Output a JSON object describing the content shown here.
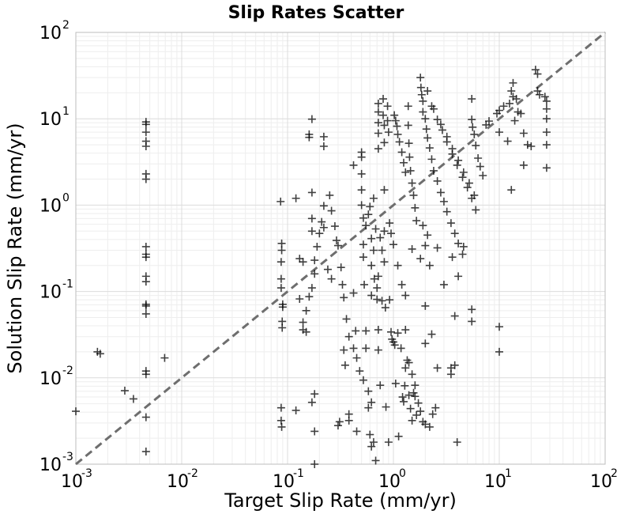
{
  "chart_data": {
    "type": "scatter",
    "title": "Slip Rates Scatter",
    "xlabel": "Target Slip Rate (mm/yr)",
    "ylabel": "Solution Slip Rate (mm/yr)",
    "xscale": "log",
    "yscale": "log",
    "xlim": [
      0.001,
      100
    ],
    "ylim": [
      0.001,
      100
    ],
    "grid": true,
    "x_ticks": [
      {
        "base": "10",
        "exp": "-3",
        "value": 0.001
      },
      {
        "base": "10",
        "exp": "-2",
        "value": 0.01
      },
      {
        "base": "10",
        "exp": "-1",
        "value": 0.1
      },
      {
        "base": "10",
        "exp": "0",
        "value": 1
      },
      {
        "base": "10",
        "exp": "1",
        "value": 10
      },
      {
        "base": "10",
        "exp": "2",
        "value": 100
      }
    ],
    "y_ticks": [
      {
        "base": "10",
        "exp": "-3",
        "value": 0.001
      },
      {
        "base": "10",
        "exp": "-2",
        "value": 0.01
      },
      {
        "base": "10",
        "exp": "-1",
        "value": 0.1
      },
      {
        "base": "10",
        "exp": "0",
        "value": 1
      },
      {
        "base": "10",
        "exp": "1",
        "value": 10
      },
      {
        "base": "10",
        "exp": "2",
        "value": 100
      }
    ],
    "reference_line": {
      "style": "dashed",
      "color": "#6e6e6e",
      "from": [
        0.001,
        0.001
      ],
      "to": [
        100,
        100
      ]
    },
    "marker": "+",
    "marker_color": "#000000",
    "points": [
      [
        0.001,
        0.0041
      ],
      [
        0.0029,
        0.0071
      ],
      [
        0.0035,
        0.0057
      ],
      [
        0.0017,
        0.019
      ],
      [
        0.0016,
        0.02
      ],
      [
        0.0069,
        0.017
      ],
      [
        0.0046,
        9.2
      ],
      [
        0.0046,
        8.6
      ],
      [
        0.0046,
        7.0
      ],
      [
        0.0046,
        5.5
      ],
      [
        0.0046,
        4.8
      ],
      [
        0.0046,
        2.3
      ],
      [
        0.0046,
        2.0
      ],
      [
        0.0046,
        0.33
      ],
      [
        0.0046,
        0.27
      ],
      [
        0.0046,
        0.25
      ],
      [
        0.0046,
        0.15
      ],
      [
        0.0046,
        0.13
      ],
      [
        0.0046,
        0.071
      ],
      [
        0.0046,
        0.068
      ],
      [
        0.0046,
        0.055
      ],
      [
        0.0046,
        0.012
      ],
      [
        0.0046,
        0.011
      ],
      [
        0.0046,
        0.0035
      ],
      [
        0.0046,
        0.0014
      ],
      [
        0.086,
        1.1
      ],
      [
        0.088,
        0.36
      ],
      [
        0.088,
        0.3
      ],
      [
        0.087,
        0.22
      ],
      [
        0.087,
        0.14
      ],
      [
        0.087,
        0.11
      ],
      [
        0.09,
        0.071
      ],
      [
        0.09,
        0.066
      ],
      [
        0.089,
        0.045
      ],
      [
        0.089,
        0.038
      ],
      [
        0.087,
        0.0045
      ],
      [
        0.087,
        0.0032
      ],
      [
        0.088,
        0.0027
      ],
      [
        0.12,
        0.0042
      ],
      [
        0.12,
        1.2
      ],
      [
        0.13,
        0.24
      ],
      [
        0.13,
        0.082
      ],
      [
        0.14,
        0.22
      ],
      [
        0.14,
        0.036
      ],
      [
        0.15,
        0.034
      ],
      [
        0.16,
        6.6
      ],
      [
        0.16,
        6.1
      ],
      [
        0.17,
        9.9
      ],
      [
        0.17,
        1.4
      ],
      [
        0.17,
        0.7
      ],
      [
        0.17,
        0.5
      ],
      [
        0.17,
        0.0052
      ],
      [
        0.18,
        0.0065
      ],
      [
        0.18,
        0.0024
      ],
      [
        0.18,
        0.001
      ],
      [
        0.22,
        6.2
      ],
      [
        0.22,
        4.8
      ],
      [
        0.22,
        0.55
      ],
      [
        0.24,
        0.18
      ],
      [
        0.26,
        0.14
      ],
      [
        0.29,
        0.39
      ],
      [
        0.3,
        0.0028
      ],
      [
        0.31,
        0.0031
      ],
      [
        0.34,
        0.021
      ],
      [
        0.35,
        0.014
      ],
      [
        0.38,
        0.0038
      ],
      [
        0.38,
        0.0032
      ],
      [
        0.42,
        2.9
      ],
      [
        0.42,
        0.096
      ],
      [
        0.44,
        0.035
      ],
      [
        0.45,
        0.0024
      ],
      [
        0.5,
        4.1
      ],
      [
        0.5,
        3.6
      ],
      [
        0.5,
        2.3
      ],
      [
        0.5,
        1.5
      ],
      [
        0.5,
        1.0
      ],
      [
        0.52,
        0.71
      ],
      [
        0.52,
        0.35
      ],
      [
        0.52,
        0.25
      ],
      [
        0.53,
        0.12
      ],
      [
        0.55,
        0.035
      ],
      [
        0.55,
        0.022
      ],
      [
        0.58,
        0.0045
      ],
      [
        0.6,
        0.0022
      ],
      [
        0.62,
        0.0016
      ],
      [
        0.65,
        0.0018
      ],
      [
        0.68,
        0.0011
      ],
      [
        0.72,
        0.15
      ],
      [
        0.72,
        0.036
      ],
      [
        0.72,
        0.021
      ],
      [
        0.75,
        0.0082
      ],
      [
        0.82,
        1.5
      ],
      [
        0.82,
        0.5
      ],
      [
        0.82,
        0.22
      ],
      [
        0.85,
        0.0046
      ],
      [
        0.9,
        0.0018
      ],
      [
        0.92,
        0.08
      ],
      [
        0.95,
        0.034
      ],
      [
        0.97,
        0.028
      ],
      [
        1.0,
        0.026
      ],
      [
        1.03,
        0.024
      ],
      [
        1.05,
        0.0086
      ],
      [
        1.1,
        0.033
      ],
      [
        1.12,
        0.0021
      ],
      [
        1.18,
        0.022
      ],
      [
        1.22,
        0.006
      ],
      [
        1.25,
        0.0053
      ],
      [
        1.28,
        0.0081
      ],
      [
        1.3,
        0.036
      ],
      [
        1.35,
        0.016
      ],
      [
        1.4,
        0.0063
      ],
      [
        1.45,
        0.0044
      ],
      [
        1.5,
        0.0032
      ],
      [
        1.55,
        0.0067
      ],
      [
        1.6,
        0.0061
      ],
      [
        1.65,
        0.0037
      ],
      [
        1.72,
        0.0051
      ],
      [
        1.8,
        0.0041
      ],
      [
        1.9,
        0.0031
      ],
      [
        2.0,
        0.0029
      ],
      [
        2.2,
        0.0027
      ],
      [
        2.35,
        0.0038
      ],
      [
        2.5,
        0.0045
      ],
      [
        0.72,
        15.0
      ],
      [
        0.72,
        12.0
      ],
      [
        0.72,
        9.0
      ],
      [
        0.72,
        6.8
      ],
      [
        0.72,
        4.5
      ],
      [
        0.8,
        17.0
      ],
      [
        0.8,
        11.0
      ],
      [
        0.82,
        8.4
      ],
      [
        0.82,
        5.3
      ],
      [
        0.88,
        14.0
      ],
      [
        0.88,
        9.5
      ],
      [
        0.9,
        7.0
      ],
      [
        1.02,
        11.0
      ],
      [
        1.05,
        9.5
      ],
      [
        1.08,
        8.2
      ],
      [
        1.1,
        6.6
      ],
      [
        1.14,
        5.4
      ],
      [
        1.2,
        4.1
      ],
      [
        1.25,
        3.1
      ],
      [
        1.3,
        2.4
      ],
      [
        1.38,
        14.0
      ],
      [
        1.38,
        8.4
      ],
      [
        1.4,
        5.2
      ],
      [
        1.42,
        3.6
      ],
      [
        1.45,
        2.5
      ],
      [
        1.5,
        1.8
      ],
      [
        1.55,
        1.3
      ],
      [
        1.6,
        0.93
      ],
      [
        1.65,
        0.66
      ],
      [
        1.8,
        30.0
      ],
      [
        1.82,
        23.0
      ],
      [
        1.85,
        19.0
      ],
      [
        1.9,
        16.0
      ],
      [
        1.9,
        12.0
      ],
      [
        2.0,
        10.0
      ],
      [
        2.05,
        7.6
      ],
      [
        2.1,
        6.0
      ],
      [
        2.2,
        4.6
      ],
      [
        2.3,
        3.4
      ],
      [
        2.4,
        2.5
      ],
      [
        2.6,
        1.9
      ],
      [
        2.8,
        1.4
      ],
      [
        3.0,
        1.1
      ],
      [
        3.2,
        0.84
      ],
      [
        3.5,
        0.62
      ],
      [
        3.8,
        0.47
      ],
      [
        4.1,
        0.36
      ],
      [
        4.5,
        0.27
      ],
      [
        2.1,
        21.0
      ],
      [
        2.3,
        14.0
      ],
      [
        2.6,
        9.8
      ],
      [
        2.9,
        7.4
      ],
      [
        3.2,
        5.4
      ],
      [
        3.6,
        3.9
      ],
      [
        4.0,
        2.9
      ],
      [
        4.5,
        2.1
      ],
      [
        5.0,
        1.6
      ],
      [
        5.5,
        1.2
      ],
      [
        6.0,
        0.88
      ],
      [
        2.4,
        13.0
      ],
      [
        2.8,
        8.6
      ],
      [
        3.2,
        6.2
      ],
      [
        3.6,
        4.5
      ],
      [
        4.1,
        3.3
      ],
      [
        4.6,
        2.4
      ],
      [
        5.2,
        1.8
      ],
      [
        5.8,
        1.3
      ],
      [
        5.5,
        17.0
      ],
      [
        5.5,
        9.8
      ],
      [
        5.6,
        8.0
      ],
      [
        5.8,
        6.6
      ],
      [
        6.0,
        4.9
      ],
      [
        6.3,
        3.5
      ],
      [
        6.6,
        2.8
      ],
      [
        7.0,
        2.2
      ],
      [
        7.5,
        8.5
      ],
      [
        8.0,
        9.4
      ],
      [
        9.5,
        11.5
      ],
      [
        10.0,
        12.5
      ],
      [
        11.0,
        14.0
      ],
      [
        12.5,
        15.0
      ],
      [
        13.0,
        21.0
      ],
      [
        13.5,
        18.0
      ],
      [
        14.5,
        17.0
      ],
      [
        15.0,
        12.0
      ],
      [
        13.5,
        26.0
      ],
      [
        14.0,
        9.5
      ],
      [
        16.0,
        11.5
      ],
      [
        17.0,
        6.8
      ],
      [
        18.5,
        5.0
      ],
      [
        20.0,
        4.8
      ],
      [
        22.0,
        37.0
      ],
      [
        23.0,
        33.0
      ],
      [
        23.0,
        21.0
      ],
      [
        24.0,
        19.0
      ],
      [
        27.0,
        18.0
      ],
      [
        28.0,
        16.0
      ],
      [
        28.0,
        13.0
      ],
      [
        28.0,
        10.0
      ],
      [
        28.0,
        7.0
      ],
      [
        28.0,
        5.0
      ],
      [
        28.0,
        2.7
      ],
      [
        13.0,
        1.5
      ],
      [
        10.0,
        7.0
      ],
      [
        12.0,
        5.5
      ],
      [
        17.0,
        2.9
      ],
      [
        10.0,
        0.039
      ],
      [
        10.0,
        0.02
      ],
      [
        5.5,
        0.062
      ],
      [
        5.5,
        0.045
      ],
      [
        4.0,
        0.0018
      ],
      [
        3.8,
        0.052
      ],
      [
        3.5,
        0.011
      ],
      [
        3.5,
        0.013
      ],
      [
        3.8,
        0.014
      ],
      [
        2.0,
        0.068
      ],
      [
        2.6,
        0.013
      ],
      [
        2.3,
        0.032
      ],
      [
        2.0,
        0.025
      ],
      [
        1.6,
        0.0082
      ],
      [
        1.5,
        0.011
      ],
      [
        1.4,
        0.015
      ],
      [
        1.3,
        0.013
      ],
      [
        2.0,
        0.34
      ],
      [
        1.8,
        0.24
      ],
      [
        2.2,
        0.2
      ],
      [
        2.6,
        0.32
      ],
      [
        3.0,
        0.12
      ],
      [
        3.6,
        0.25
      ],
      [
        4.1,
        0.15
      ],
      [
        4.6,
        0.33
      ],
      [
        1.9,
        0.58
      ],
      [
        2.1,
        0.45
      ],
      [
        1.5,
        0.31
      ],
      [
        1.3,
        0.09
      ],
      [
        1.2,
        0.12
      ],
      [
        1.1,
        0.2
      ],
      [
        1.0,
        0.35
      ],
      [
        0.95,
        0.47
      ],
      [
        0.92,
        0.62
      ],
      [
        0.62,
        0.41
      ],
      [
        0.65,
        0.3
      ],
      [
        0.62,
        0.2
      ],
      [
        0.66,
        0.14
      ],
      [
        0.7,
        0.11
      ],
      [
        0.62,
        0.09
      ],
      [
        0.7,
        0.081
      ],
      [
        0.78,
        0.078
      ],
      [
        0.84,
        0.065
      ],
      [
        0.55,
        0.58
      ],
      [
        0.58,
        0.78
      ],
      [
        0.6,
        0.96
      ],
      [
        0.65,
        1.2
      ],
      [
        0.68,
        0.53
      ],
      [
        0.75,
        0.42
      ],
      [
        0.78,
        0.3
      ],
      [
        0.25,
        1.3
      ],
      [
        0.26,
        0.86
      ],
      [
        0.28,
        0.57
      ],
      [
        0.3,
        0.34
      ],
      [
        0.32,
        0.19
      ],
      [
        0.33,
        0.12
      ],
      [
        0.34,
        0.085
      ],
      [
        0.36,
        0.048
      ],
      [
        0.38,
        0.03
      ],
      [
        0.42,
        0.022
      ],
      [
        0.45,
        0.017
      ],
      [
        0.48,
        0.012
      ],
      [
        0.52,
        0.0094
      ],
      [
        0.58,
        0.007
      ],
      [
        0.62,
        0.0052
      ],
      [
        0.22,
        0.98
      ],
      [
        0.21,
        0.64
      ],
      [
        0.2,
        0.47
      ],
      [
        0.19,
        0.33
      ],
      [
        0.18,
        0.23
      ],
      [
        0.18,
        0.16
      ],
      [
        0.17,
        0.11
      ],
      [
        0.16,
        0.087
      ],
      [
        0.15,
        0.06
      ],
      [
        0.14,
        0.044
      ]
    ]
  }
}
